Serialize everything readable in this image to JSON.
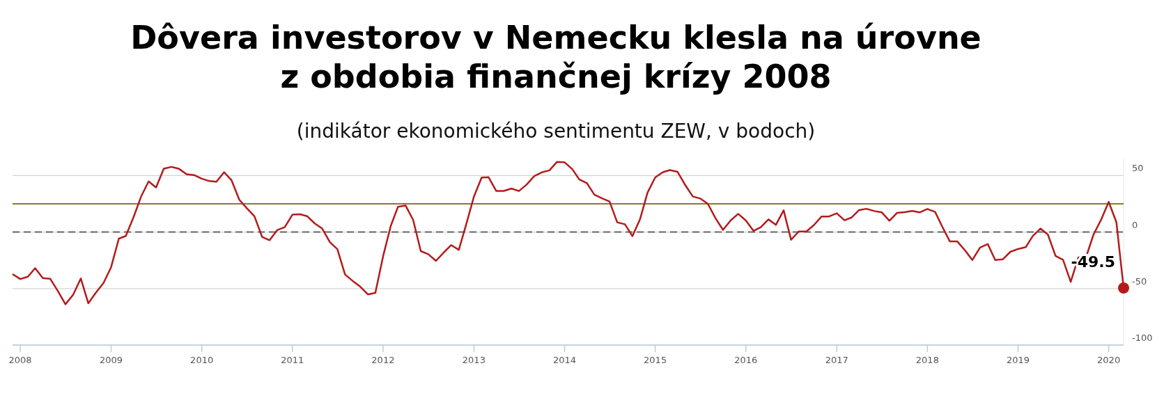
{
  "chart_data": {
    "type": "line",
    "title": "Dôvera investorov v Nemecku klesla na úrovne\nz obdobia finančnej krízy 2008",
    "subtitle": "(indikátor ekonomického sentimentu ZEW, v bodoch)",
    "x": [
      "2007-12",
      "2008-01",
      "2008-02",
      "2008-03",
      "2008-04",
      "2008-05",
      "2008-06",
      "2008-07",
      "2008-08",
      "2008-09",
      "2008-10",
      "2008-11",
      "2008-12",
      "2009-01",
      "2009-02",
      "2009-03",
      "2009-04",
      "2009-05",
      "2009-06",
      "2009-07",
      "2009-08",
      "2009-09",
      "2009-10",
      "2009-11",
      "2009-12",
      "2010-01",
      "2010-02",
      "2010-03",
      "2010-04",
      "2010-05",
      "2010-06",
      "2010-07",
      "2010-08",
      "2010-09",
      "2010-10",
      "2010-11",
      "2010-12",
      "2011-01",
      "2011-02",
      "2011-03",
      "2011-04",
      "2011-05",
      "2011-06",
      "2011-07",
      "2011-08",
      "2011-09",
      "2011-10",
      "2011-11",
      "2011-12",
      "2012-01",
      "2012-02",
      "2012-03",
      "2012-04",
      "2012-05",
      "2012-06",
      "2012-07",
      "2012-08",
      "2012-09",
      "2012-10",
      "2012-11",
      "2012-12",
      "2013-01",
      "2013-02",
      "2013-03",
      "2013-04",
      "2013-05",
      "2013-06",
      "2013-07",
      "2013-08",
      "2013-09",
      "2013-10",
      "2013-11",
      "2013-12",
      "2014-01",
      "2014-02",
      "2014-03",
      "2014-04",
      "2014-05",
      "2014-06",
      "2014-07",
      "2014-08",
      "2014-09",
      "2014-10",
      "2014-11",
      "2014-12",
      "2015-01",
      "2015-02",
      "2015-03",
      "2015-04",
      "2015-05",
      "2015-06",
      "2015-07",
      "2015-08",
      "2015-09",
      "2015-10",
      "2015-11",
      "2015-12",
      "2016-01",
      "2016-02",
      "2016-03",
      "2016-04",
      "2016-05",
      "2016-06",
      "2016-07",
      "2016-08",
      "2016-09",
      "2016-10",
      "2016-11",
      "2016-12",
      "2017-01",
      "2017-02",
      "2017-03",
      "2017-04",
      "2017-05",
      "2017-06",
      "2017-07",
      "2017-08",
      "2017-09",
      "2017-10",
      "2017-11",
      "2017-12",
      "2018-01",
      "2018-02",
      "2018-03",
      "2018-04",
      "2018-05",
      "2018-06",
      "2018-07",
      "2018-08",
      "2018-09",
      "2018-10",
      "2018-11",
      "2018-12",
      "2019-01",
      "2019-02",
      "2019-03",
      "2019-04",
      "2019-05",
      "2019-06",
      "2019-07",
      "2019-08",
      "2019-09",
      "2019-10",
      "2019-11",
      "2019-12",
      "2020-01",
      "2020-02",
      "2020-03"
    ],
    "series": [
      {
        "color": "#b31b1b",
        "values": [
          -37.2,
          -41.6,
          -39.5,
          -32.0,
          -40.7,
          -41.4,
          -52.4,
          -63.9,
          -55.5,
          -41.1,
          -63.0,
          -53.5,
          -45.2,
          -31.0,
          -5.8,
          -3.5,
          13.0,
          31.1,
          44.8,
          39.5,
          56.1,
          57.7,
          56.0,
          51.1,
          50.4,
          47.2,
          45.1,
          44.5,
          53.0,
          45.8,
          28.7,
          21.2,
          14.0,
          -4.3,
          -7.2,
          1.8,
          4.3,
          15.4,
          15.7,
          14.1,
          7.6,
          3.1,
          -9.0,
          -15.1,
          -37.6,
          -43.3,
          -48.3,
          -55.2,
          -53.8,
          -21.6,
          5.4,
          22.3,
          23.4,
          10.8,
          -16.9,
          -19.6,
          -25.5,
          -18.2,
          -11.5,
          -15.7,
          6.9,
          31.5,
          48.2,
          48.5,
          36.3,
          36.4,
          38.5,
          36.3,
          42.0,
          49.6,
          52.8,
          54.6,
          62.0,
          61.7,
          55.7,
          46.6,
          43.2,
          33.1,
          29.8,
          27.1,
          8.6,
          6.9,
          -3.6,
          11.5,
          34.9,
          48.4,
          53.0,
          54.8,
          53.3,
          41.9,
          31.5,
          29.7,
          25.0,
          12.1,
          1.9,
          10.4,
          16.1,
          10.2,
          1.0,
          4.3,
          11.2,
          6.4,
          19.2,
          -6.8,
          0.5,
          0.5,
          6.2,
          13.8,
          13.8,
          16.6,
          10.4,
          12.8,
          19.5,
          20.6,
          18.6,
          17.5,
          10.0,
          17.0,
          17.6,
          18.7,
          17.4,
          20.4,
          17.8,
          5.1,
          -8.2,
          -8.2,
          -16.1,
          -24.7,
          -13.7,
          -10.6,
          -24.7,
          -24.1,
          -17.5,
          -15.0,
          -13.4,
          -3.6,
          3.1,
          -2.1,
          -21.1,
          -24.5,
          -44.1,
          -22.5,
          -22.8,
          -2.1,
          10.7,
          26.7,
          8.7,
          -49.5
        ]
      }
    ],
    "xlim": [
      "2007-12",
      "2020-03"
    ],
    "xticks": [
      "2008",
      "2009",
      "2010",
      "2011",
      "2012",
      "2013",
      "2014",
      "2015",
      "2016",
      "2017",
      "2018",
      "2019",
      "2020"
    ],
    "ylim": [
      -100,
      65
    ],
    "yticks": [
      50,
      0,
      -50,
      -100
    ],
    "grid": "y",
    "ref_lines": [
      {
        "axis": "y",
        "value": 25,
        "color": "#8b7a2e",
        "line_style": "solid"
      },
      {
        "axis": "y",
        "value": 0,
        "color": "#666666",
        "line_style": "dashed"
      }
    ],
    "annotations": [
      {
        "text": "-49.5",
        "x": "2020-03",
        "y": -49.5
      }
    ]
  }
}
